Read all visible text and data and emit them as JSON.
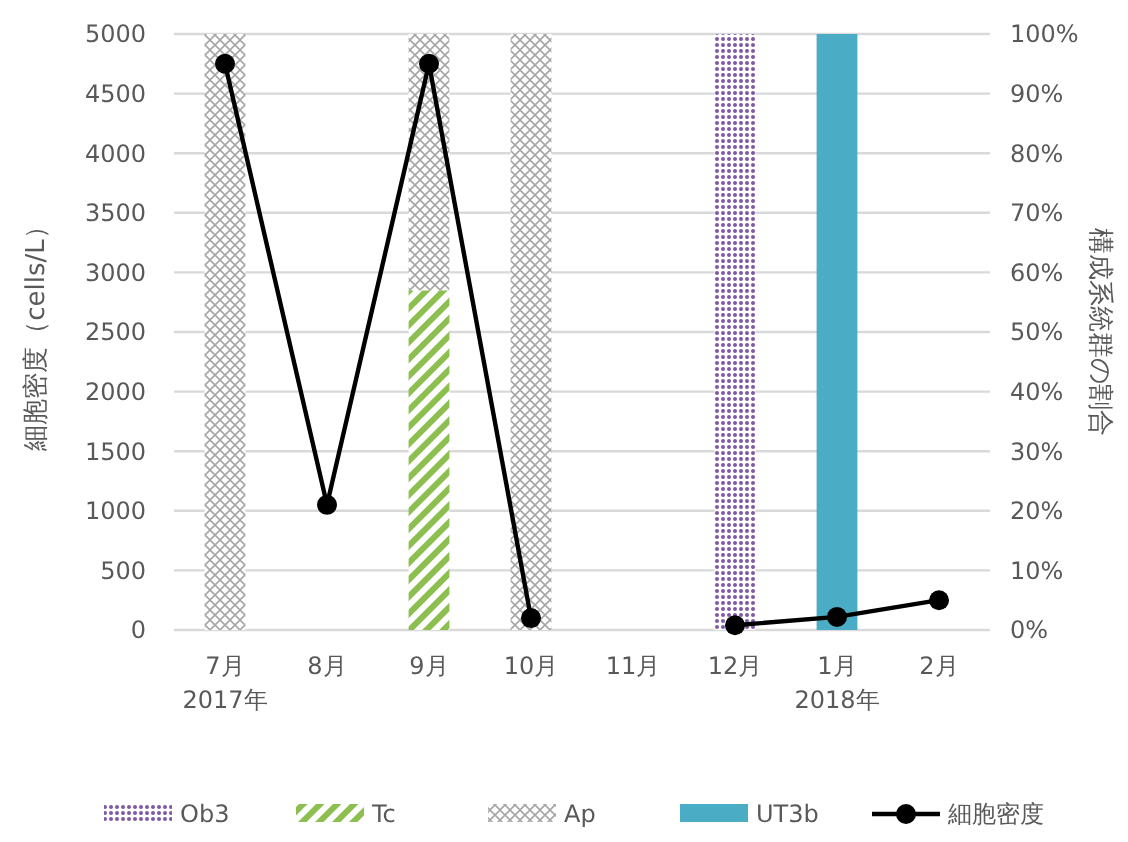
{
  "chart_data": {
    "type": "bar",
    "stacked": true,
    "categories": [
      "7月\n2017年",
      "8月",
      "9月",
      "10月",
      "11月",
      "12月",
      "1月\n2018年",
      "2月"
    ],
    "ylabel": "細胞密度（cells/L）",
    "y2label": "構成系統群の割合",
    "ylim": [
      0,
      5000
    ],
    "yticks": [
      0,
      500,
      1000,
      1500,
      2000,
      2500,
      3000,
      3500,
      4000,
      4500,
      5000
    ],
    "y2lim": [
      0,
      100
    ],
    "y2ticks": [
      {
        "value": 0,
        "label": "0%"
      },
      {
        "value": 10,
        "label": "10%"
      },
      {
        "value": 20,
        "label": "20%"
      },
      {
        "value": 30,
        "label": "30%"
      },
      {
        "value": 40,
        "label": "40%"
      },
      {
        "value": 50,
        "label": "50%"
      },
      {
        "value": 60,
        "label": "60%"
      },
      {
        "value": 70,
        "label": "70%"
      },
      {
        "value": 80,
        "label": "80%"
      },
      {
        "value": 90,
        "label": "90%"
      },
      {
        "value": 100,
        "label": "100%"
      }
    ],
    "grid": "y",
    "legend": "bottom",
    "series": [
      {
        "name": "Ob3",
        "color": "#7e5aa6",
        "axis": "y2",
        "values": [
          null,
          null,
          null,
          null,
          null,
          100,
          null,
          null
        ]
      },
      {
        "name": "Tc",
        "color": "#8cbf4f",
        "axis": "y2",
        "values": [
          null,
          null,
          57,
          null,
          null,
          null,
          null,
          null
        ]
      },
      {
        "name": "Ap",
        "color": "#a6a6a6",
        "axis": "y2",
        "values": [
          100,
          null,
          43,
          100,
          null,
          null,
          null,
          null
        ]
      },
      {
        "name": "UT3b",
        "color": "#4bacc6",
        "axis": "y2",
        "values": [
          null,
          null,
          null,
          null,
          null,
          null,
          100,
          null
        ]
      },
      {
        "name": "細胞密度",
        "type": "line",
        "color": "#000000",
        "marker": "circle",
        "values": [
          4750,
          1050,
          4750,
          100,
          null,
          40,
          110,
          250
        ]
      }
    ]
  }
}
